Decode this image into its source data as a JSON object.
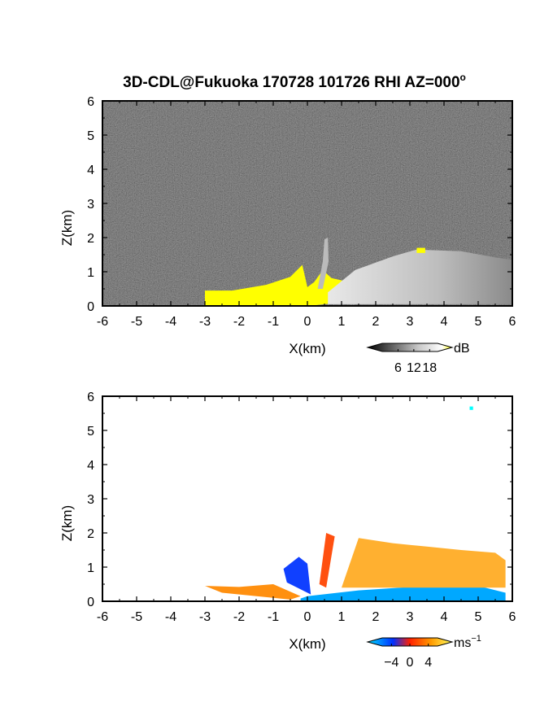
{
  "title": "3D-CDL@Fukuoka 170728 101726 RHI AZ=000",
  "title_superscript": "o",
  "chart_data": [
    {
      "type": "heatmap",
      "name": "intensity",
      "xlabel": "X(km)",
      "ylabel": "Z(km)",
      "xlim": [
        -6,
        6
      ],
      "ylim": [
        0,
        6
      ],
      "xticks": [
        "-6",
        "-5",
        "-4",
        "-3",
        "-2",
        "-1",
        "0",
        "1",
        "2",
        "3",
        "4",
        "5",
        "6"
      ],
      "yticks": [
        "0",
        "1",
        "2",
        "3",
        "4",
        "5",
        "6"
      ],
      "colorbar": {
        "unit": "dB",
        "ticks": [
          "6",
          "12",
          "18"
        ],
        "tick_values": [
          6,
          12,
          18
        ],
        "range": [
          0,
          21
        ],
        "colors": [
          "#000000",
          "#ffffff",
          "#ffff00"
        ]
      },
      "regions": [
        {
          "kind": "saturated",
          "color": "#ffff00",
          "outline": [
            [
              -3,
              0.45
            ],
            [
              -2.2,
              0.45
            ],
            [
              -1.2,
              0.62
            ],
            [
              -0.5,
              0.85
            ],
            [
              -0.15,
              1.2
            ],
            [
              0,
              0.55
            ],
            [
              0.2,
              0.7
            ],
            [
              0.45,
              1.05
            ],
            [
              0.7,
              0.82
            ],
            [
              1.2,
              0.7
            ],
            [
              1.8,
              0.55
            ],
            [
              2.1,
              0.42
            ],
            [
              2.0,
              0.3
            ],
            [
              1.0,
              0.1
            ],
            [
              0,
              0
            ],
            [
              -3,
              0
            ]
          ]
        },
        {
          "kind": "echo-beam",
          "color": "#bbbbbb",
          "outline": [
            [
              0.3,
              0.5
            ],
            [
              0.45,
              1.3
            ],
            [
              0.5,
              1.95
            ],
            [
              0.6,
              2.0
            ],
            [
              0.62,
              1.3
            ],
            [
              0.45,
              0.5
            ]
          ]
        },
        {
          "kind": "echo-layer",
          "color": "#d8d8d8",
          "outline": [
            [
              0.6,
              0.4
            ],
            [
              1.4,
              1.05
            ],
            [
              2.5,
              1.45
            ],
            [
              3.2,
              1.65
            ],
            [
              4.5,
              1.6
            ],
            [
              5.5,
              1.42
            ],
            [
              6,
              1.35
            ],
            [
              6,
              0.05
            ],
            [
              0.6,
              0.05
            ]
          ]
        },
        {
          "kind": "hotspot",
          "color": "#ffff00",
          "outline": [
            [
              3.2,
              1.55
            ],
            [
              3.45,
              1.55
            ],
            [
              3.45,
              1.7
            ],
            [
              3.2,
              1.7
            ]
          ]
        }
      ]
    },
    {
      "type": "heatmap",
      "name": "radial-velocity",
      "xlabel": "X(km)",
      "ylabel": "Z(km)",
      "xlim": [
        -6,
        6
      ],
      "ylim": [
        0,
        6
      ],
      "xticks": [
        "-6",
        "-5",
        "-4",
        "-3",
        "-2",
        "-1",
        "0",
        "1",
        "2",
        "3",
        "4",
        "5",
        "6"
      ],
      "yticks": [
        "0",
        "1",
        "2",
        "3",
        "4",
        "5",
        "6"
      ],
      "colorbar": {
        "unit": "ms",
        "unit_superscript": "−1",
        "ticks": [
          "−4",
          "0",
          "4"
        ],
        "tick_values": [
          -4,
          0,
          4
        ],
        "range": [
          -6,
          6
        ],
        "colors": [
          "#00e0ff",
          "#0030ff",
          "#ff2000",
          "#ff9a00",
          "#ffff60"
        ]
      },
      "regions": [
        {
          "kind": "approaching-layer",
          "velocity": -3,
          "color": "#00a8ff",
          "outline": [
            [
              -0.2,
              0.08
            ],
            [
              0,
              0.15
            ],
            [
              1.5,
              0.32
            ],
            [
              3.5,
              0.45
            ],
            [
              5.0,
              0.45
            ],
            [
              5.8,
              0.25
            ],
            [
              5.8,
              0.02
            ],
            [
              -0.2,
              0.02
            ]
          ]
        },
        {
          "kind": "receding-layer",
          "velocity": 3,
          "color": "#ffb030",
          "outline": [
            [
              1.0,
              0.4
            ],
            [
              1.5,
              1.85
            ],
            [
              2.5,
              1.7
            ],
            [
              3.5,
              1.6
            ],
            [
              4.5,
              1.5
            ],
            [
              5.5,
              1.42
            ],
            [
              5.8,
              1.2
            ],
            [
              5.8,
              0.4
            ]
          ]
        },
        {
          "kind": "receding-beam",
          "velocity": 2,
          "color": "#ff5010",
          "outline": [
            [
              0.35,
              0.5
            ],
            [
              0.55,
              2.0
            ],
            [
              0.8,
              1.9
            ],
            [
              0.55,
              0.4
            ]
          ]
        },
        {
          "kind": "approaching-plume",
          "velocity": -4,
          "color": "#1040ff",
          "outline": [
            [
              -0.7,
              0.95
            ],
            [
              -0.25,
              1.3
            ],
            [
              0,
              1.1
            ],
            [
              0.1,
              0.2
            ],
            [
              -0.6,
              0.55
            ]
          ]
        },
        {
          "kind": "low-level-wedge",
          "velocity": 2.5,
          "color": "#ff9010",
          "outline": [
            [
              -3,
              0.45
            ],
            [
              -2,
              0.42
            ],
            [
              -1,
              0.5
            ],
            [
              -0.2,
              0.15
            ],
            [
              -0.5,
              0.05
            ],
            [
              -2.5,
              0.25
            ]
          ]
        },
        {
          "kind": "isolated-pixel",
          "velocity": -5,
          "color": "#00ffff",
          "outline": [
            [
              4.75,
              5.6
            ],
            [
              4.85,
              5.6
            ],
            [
              4.85,
              5.7
            ],
            [
              4.75,
              5.7
            ]
          ]
        }
      ]
    }
  ]
}
